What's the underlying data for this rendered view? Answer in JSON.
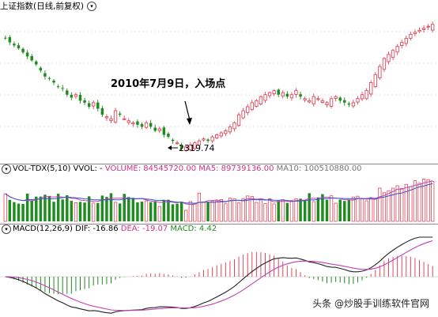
{
  "main_panel": {
    "title": "上证指数(日线,前复权)",
    "annotation": "2010年7月9日，入场点",
    "low_label": "2319.74"
  },
  "volume_panel": {
    "name": "VOL-TDX(5,10)",
    "vvol": "VVOL: -",
    "volume": "VOLUME: 84545720.00",
    "ma5": "MA5: 89739136.00",
    "ma10": "MA10: 100510880.00"
  },
  "macd_panel": {
    "name": "MACD(12,26,9)",
    "dif": "DIF: -16.86",
    "dea": "DEA: -19.07",
    "macd": "MACD: 4.42"
  },
  "watermark": "头条 @炒股手训练软件官网",
  "colors": {
    "up": "#e0485a",
    "down": "#1e8c1e",
    "dif": "#222222",
    "dea": "#c040b0",
    "ma10": "#3355cc"
  },
  "chart_data": [
    {
      "type": "candlestick",
      "title": "上证指数(日线,前复权)",
      "approx_close_profile": [
        2880,
        2860,
        2845,
        2830,
        2810,
        2790,
        2770,
        2750,
        2720,
        2690,
        2680,
        2660,
        2640,
        2630,
        2600,
        2585,
        2600,
        2570,
        2560,
        2540,
        2560,
        2530,
        2500,
        2490,
        2480,
        2520,
        2500,
        2480,
        2470,
        2460,
        2450,
        2440,
        2460,
        2440,
        2420,
        2430,
        2400,
        2390,
        2370,
        2360,
        2330,
        2340,
        2350,
        2360,
        2370,
        2380,
        2370,
        2390,
        2400,
        2410,
        2420,
        2440,
        2460,
        2500,
        2520,
        2540,
        2560,
        2570,
        2590,
        2600,
        2610,
        2620,
        2600,
        2610,
        2590,
        2600,
        2620,
        2590,
        2580,
        2570,
        2590,
        2580,
        2570,
        2560,
        2580,
        2590,
        2570,
        2560,
        2550,
        2560,
        2580,
        2600,
        2620,
        2660,
        2700,
        2740,
        2780,
        2800,
        2820,
        2840,
        2860,
        2880,
        2900,
        2910,
        2920,
        2930,
        2940,
        2950
      ],
      "annotations": [
        "2010年7月9日，入场点",
        "2319.74"
      ]
    },
    {
      "type": "bar",
      "title": "VOL-TDX(5,10)",
      "series": [
        {
          "name": "VOLUME",
          "last_value": 84545720.0
        },
        {
          "name": "MA5",
          "last_value": 89739136.0
        },
        {
          "name": "MA10",
          "last_value": 100510880.0
        }
      ]
    },
    {
      "type": "bar",
      "title": "MACD(12,26,9)",
      "series": [
        {
          "name": "DIF",
          "last_value": -16.86
        },
        {
          "name": "DEA",
          "last_value": -19.07
        },
        {
          "name": "MACD",
          "last_value": 4.42
        }
      ]
    }
  ]
}
